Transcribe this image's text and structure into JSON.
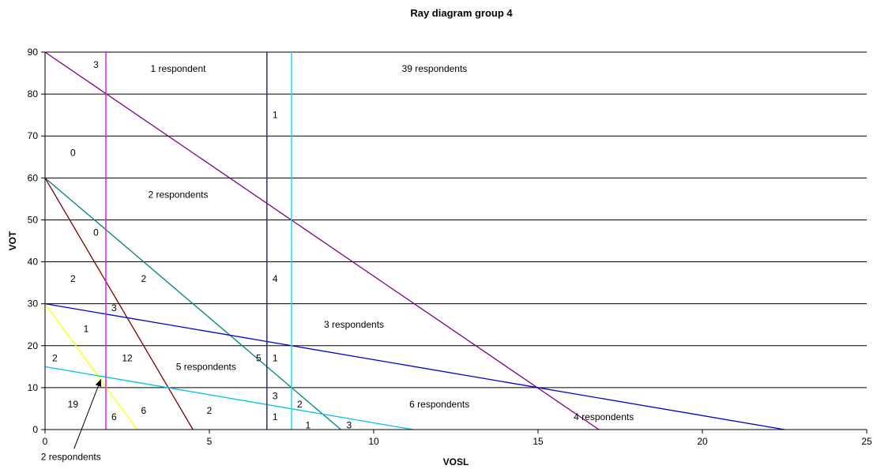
{
  "chart_data": {
    "type": "line",
    "title": "Ray diagram group 4",
    "xlabel": "VOSL",
    "ylabel": "VOT",
    "xlim": [
      0,
      25
    ],
    "ylim": [
      0,
      90
    ],
    "x_ticks": [
      "0",
      "5",
      "10",
      "15",
      "20",
      "25"
    ],
    "y_ticks": [
      "0",
      "10",
      "20",
      "30",
      "40",
      "50",
      "60",
      "70",
      "80",
      "90"
    ],
    "grid": true,
    "legend": "none",
    "vertical_lines": [
      {
        "x": 1.85,
        "color": "#e11fe8"
      },
      {
        "x": 6.75,
        "color": "#2b2b86"
      },
      {
        "x": 7.5,
        "color": "#27d9e8"
      }
    ],
    "rays": [
      {
        "points": [
          [
            0,
            90
          ],
          [
            16.85,
            0
          ]
        ],
        "color": "#800080"
      },
      {
        "points": [
          [
            0,
            60
          ],
          [
            9.0,
            0
          ]
        ],
        "color": "#008080"
      },
      {
        "points": [
          [
            0,
            60
          ],
          [
            4.5,
            0
          ]
        ],
        "color": "#800000"
      },
      {
        "points": [
          [
            0,
            30
          ],
          [
            22.5,
            0
          ]
        ],
        "color": "#0000cc"
      },
      {
        "points": [
          [
            0,
            30
          ],
          [
            2.8,
            0
          ]
        ],
        "color": "#ffff00"
      },
      {
        "points": [
          [
            0,
            15
          ],
          [
            11.2,
            0
          ]
        ],
        "color": "#00bfe6"
      }
    ],
    "annotations": [
      {
        "text": "3",
        "x": 1.55,
        "y": 87
      },
      {
        "text": "1 respondent",
        "x": 4.05,
        "y": 86
      },
      {
        "text": "39 respondents",
        "x": 11.85,
        "y": 86
      },
      {
        "text": "1",
        "x": 7.0,
        "y": 75
      },
      {
        "text": "0",
        "x": 0.85,
        "y": 66
      },
      {
        "text": "2 respondents",
        "x": 4.05,
        "y": 56
      },
      {
        "text": "0",
        "x": 1.55,
        "y": 47
      },
      {
        "text": "2",
        "x": 0.85,
        "y": 36
      },
      {
        "text": "2",
        "x": 3.0,
        "y": 36
      },
      {
        "text": "4",
        "x": 7.0,
        "y": 36
      },
      {
        "text": "3",
        "x": 2.1,
        "y": 29
      },
      {
        "text": "1",
        "x": 1.25,
        "y": 24
      },
      {
        "text": "3 respondents",
        "x": 9.4,
        "y": 25
      },
      {
        "text": "2",
        "x": 0.3,
        "y": 17
      },
      {
        "text": "12",
        "x": 2.5,
        "y": 17
      },
      {
        "text": "5 respondents",
        "x": 4.9,
        "y": 15
      },
      {
        "text": "5",
        "x": 6.5,
        "y": 17
      },
      {
        "text": "1",
        "x": 7.0,
        "y": 17
      },
      {
        "text": "19",
        "x": 0.85,
        "y": 6
      },
      {
        "text": "6",
        "x": 2.1,
        "y": 3
      },
      {
        "text": "6",
        "x": 3.0,
        "y": 4.5
      },
      {
        "text": "2",
        "x": 5.0,
        "y": 4.5
      },
      {
        "text": "3",
        "x": 7.0,
        "y": 8
      },
      {
        "text": "2",
        "x": 7.75,
        "y": 6
      },
      {
        "text": "6 respondents",
        "x": 12.0,
        "y": 6
      },
      {
        "text": "1",
        "x": 7.0,
        "y": 3
      },
      {
        "text": "1",
        "x": 8.0,
        "y": 1
      },
      {
        "text": "3",
        "x": 9.25,
        "y": 1
      },
      {
        "text": "4 respondents",
        "x": 17.0,
        "y": 3
      }
    ],
    "callout": {
      "text": "2 respondents",
      "x": 1.7,
      "y": 12
    }
  }
}
